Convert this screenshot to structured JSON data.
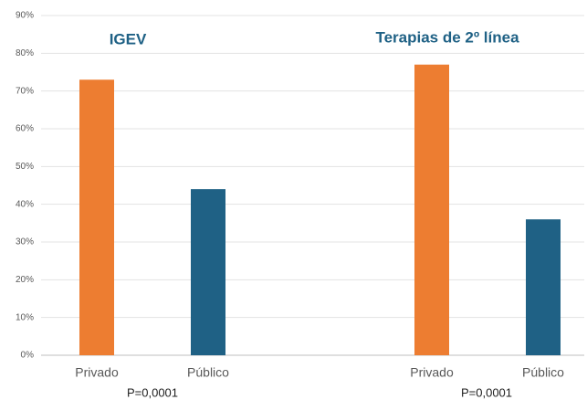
{
  "chart_data": {
    "type": "bar",
    "categories": [
      "Privado",
      "Público",
      "Privado",
      "Público"
    ],
    "values": [
      73,
      44,
      77,
      36
    ],
    "colors": [
      "#ED7D31",
      "#1F6185",
      "#ED7D31",
      "#1F6185"
    ],
    "groups": [
      {
        "title": "IGEV",
        "annotation": "P=0,0001"
      },
      {
        "title": "Terapias de 2º línea",
        "annotation": "P=0,0001"
      }
    ],
    "ylim": [
      0,
      90
    ],
    "yticks": [
      {
        "value": 0,
        "label": "0%"
      },
      {
        "value": 10,
        "label": "10%"
      },
      {
        "value": 20,
        "label": "20%"
      },
      {
        "value": 30,
        "label": "30%"
      },
      {
        "value": 40,
        "label": "40%"
      },
      {
        "value": 50,
        "label": "50%"
      },
      {
        "value": 60,
        "label": "60%"
      },
      {
        "value": 70,
        "label": "70%"
      },
      {
        "value": 80,
        "label": "80%"
      },
      {
        "value": 90,
        "label": "90%"
      }
    ],
    "grid": true
  }
}
